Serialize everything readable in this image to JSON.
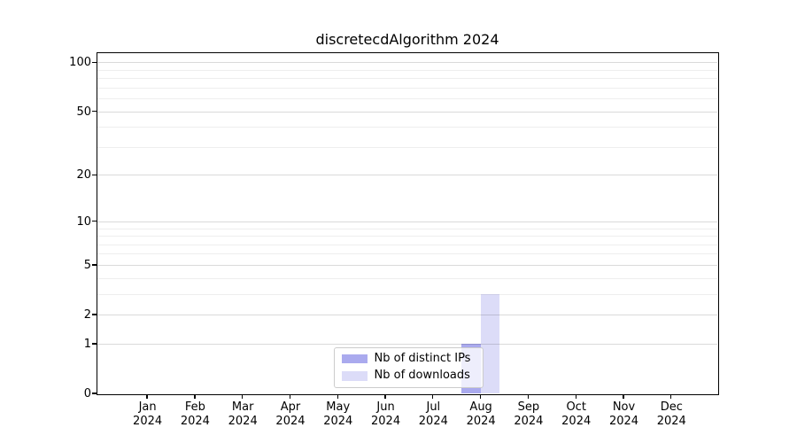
{
  "title": "discretecdAlgorithm 2024",
  "chart_data": {
    "type": "bar",
    "title": "discretecdAlgorithm 2024",
    "categories": [
      "Jan 2024",
      "Feb 2024",
      "Mar 2024",
      "Apr 2024",
      "May 2024",
      "Jun 2024",
      "Jul 2024",
      "Aug 2024",
      "Sep 2024",
      "Oct 2024",
      "Nov 2024",
      "Dec 2024"
    ],
    "series": [
      {
        "name": "Nb of distinct IPs",
        "color": "#aaaaee",
        "values": [
          0,
          0,
          0,
          0,
          0,
          0,
          0,
          1,
          0,
          0,
          0,
          0
        ]
      },
      {
        "name": "Nb of downloads",
        "color": "#dcdcf8",
        "values": [
          0,
          0,
          0,
          0,
          0,
          0,
          0,
          3,
          0,
          0,
          0,
          0
        ]
      }
    ],
    "x_axis": {
      "tick_labels_line2": "2024"
    },
    "y_axis": {
      "scale": "log10(1+x)",
      "tick_values": [
        0,
        1,
        2,
        5,
        10,
        20,
        50,
        100
      ],
      "minor_gridline_values": [
        3,
        4,
        6,
        7,
        8,
        9,
        30,
        40,
        60,
        70,
        80,
        90
      ],
      "range": [
        0,
        114
      ]
    },
    "grid": {
      "enabled": true,
      "major_color": "#d9d9d9",
      "minor_color": "#eeeeee"
    },
    "legend": {
      "position": "bottom-center",
      "background": "rgba(255,255,255,0.8)",
      "border_color": "#cccccc"
    },
    "spine_color": "#000000",
    "background_color": "#ffffff"
  }
}
